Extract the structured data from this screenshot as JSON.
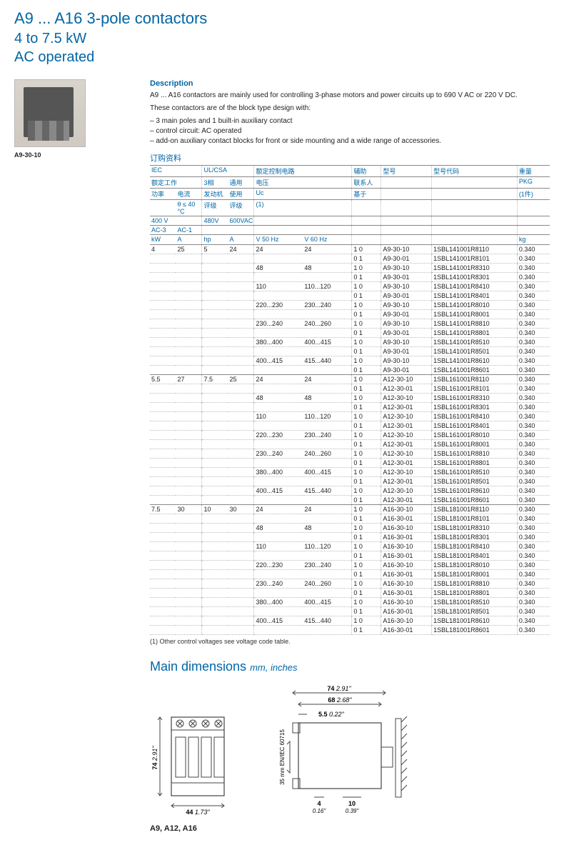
{
  "header": {
    "line1": "A9 ... A16  3-pole contactors",
    "line2": "4 to 7.5 kW",
    "line3": "AC operated"
  },
  "product": {
    "caption": "A9-30-10"
  },
  "description": {
    "heading": "Description",
    "p1": "A9 ... A16 contactors are mainly used for controlling 3-phase motors and power circuits up to 690 V AC or 220 V DC.",
    "p2": "These contactors are of the block type design with:",
    "bullets": [
      "3 main poles and 1 built-in auxiliary contact",
      "control circuit: AC operated",
      "add-on auxiliary contact blocks for front or side mounting and a wide range of accessories."
    ]
  },
  "section_label": "订购资料",
  "table": {
    "headers": {
      "iec": "IEC",
      "ulcsa": "UL/CSA",
      "ctrl": "额定控制电路",
      "aux": "辅助",
      "type": "型号",
      "typecode": "型号代码",
      "weight": "重量",
      "rated_work": "额定工作",
      "motor3": "3相",
      "general": "通用",
      "voltage": "电压",
      "contact": "联系人",
      "pkg": "PKG",
      "power": "功率",
      "current": "电流",
      "motor": "发动机",
      "use": "使用",
      "uc": "Uc",
      "based": "基于",
      "pkg1": "(1件)",
      "theta": "θ ≤ 40 °C",
      "rating1": "评级",
      "rating2": "评级",
      "note1": "(1)",
      "r400v": "400 V",
      "r480v": "480V",
      "r600v": "600VAC",
      "ac3": "AC-3",
      "ac1": "AC-1",
      "kw": "kW",
      "a1": "A",
      "hp": "hp",
      "a2": "A",
      "v50": "V 50 Hz",
      "v60": "V 60 Hz",
      "kg": "kg"
    },
    "groups": [
      {
        "kw": "4",
        "a_ac3": "25",
        "hp": "5",
        "a_ul": "24",
        "model_prefix": "A9-30",
        "code_prefix": "1SBL141001R8",
        "voltages": [
          {
            "v50": "24",
            "v60": "24",
            "suffix10": "110",
            "suffix01": "101"
          },
          {
            "v50": "48",
            "v60": "48",
            "suffix10": "310",
            "suffix01": "301"
          },
          {
            "v50": "110",
            "v60": "110...120",
            "suffix10": "410",
            "suffix01": "401"
          },
          {
            "v50": "220...230",
            "v60": "230...240",
            "suffix10": "010",
            "suffix01": "001"
          },
          {
            "v50": "230...240",
            "v60": "240...260",
            "suffix10": "810",
            "suffix01": "801"
          },
          {
            "v50": "380...400",
            "v60": "400...415",
            "suffix10": "510",
            "suffix01": "501"
          },
          {
            "v50": "400...415",
            "v60": "415...440",
            "suffix10": "610",
            "suffix01": "601"
          }
        ],
        "weight": "0.340"
      },
      {
        "kw": "5.5",
        "a_ac3": "27",
        "hp": "7.5",
        "a_ul": "25",
        "model_prefix": "A12-30",
        "code_prefix": "1SBL161001R8",
        "voltages": [
          {
            "v50": "24",
            "v60": "24",
            "suffix10": "110",
            "suffix01": "101"
          },
          {
            "v50": "48",
            "v60": "48",
            "suffix10": "310",
            "suffix01": "301"
          },
          {
            "v50": "110",
            "v60": "110...120",
            "suffix10": "410",
            "suffix01": "401"
          },
          {
            "v50": "220...230",
            "v60": "230...240",
            "suffix10": "010",
            "suffix01": "001"
          },
          {
            "v50": "230...240",
            "v60": "240...260",
            "suffix10": "810",
            "suffix01": "801"
          },
          {
            "v50": "380...400",
            "v60": "400...415",
            "suffix10": "510",
            "suffix01": "501"
          },
          {
            "v50": "400...415",
            "v60": "415...440",
            "suffix10": "610",
            "suffix01": "601"
          }
        ],
        "weight": "0.340"
      },
      {
        "kw": "7.5",
        "a_ac3": "30",
        "hp": "10",
        "a_ul": "30",
        "model_prefix": "A16-30",
        "code_prefix": "1SBL181001R8",
        "voltages": [
          {
            "v50": "24",
            "v60": "24",
            "suffix10": "110",
            "suffix01": "101"
          },
          {
            "v50": "48",
            "v60": "48",
            "suffix10": "310",
            "suffix01": "301"
          },
          {
            "v50": "110",
            "v60": "110...120",
            "suffix10": "410",
            "suffix01": "401"
          },
          {
            "v50": "220...230",
            "v60": "230...240",
            "suffix10": "010",
            "suffix01": "001"
          },
          {
            "v50": "230...240",
            "v60": "240...260",
            "suffix10": "810",
            "suffix01": "801"
          },
          {
            "v50": "380...400",
            "v60": "400...415",
            "suffix10": "510",
            "suffix01": "501"
          },
          {
            "v50": "400...415",
            "v60": "415...440",
            "suffix10": "610",
            "suffix01": "601"
          }
        ],
        "weight": "0.340"
      }
    ],
    "aux_10": "1   0",
    "aux_01": "0   1",
    "footnote": "(1) Other control voltages see voltage code table."
  },
  "dimensions": {
    "heading": "Main dimensions",
    "unit": "mm, inches",
    "caption": "A9, A12, A16",
    "front": {
      "height_mm": "74",
      "height_in": "2.91\"",
      "width_mm": "44",
      "width_in": "1.73\""
    },
    "side": {
      "total_w_mm": "74",
      "total_w_in": "2.91\"",
      "body_w_mm": "68",
      "body_w_in": "2.68\"",
      "tab_mm": "5.5",
      "tab_in": "0.22\"",
      "rail": "35 mm EN/IEC 60715",
      "d1_mm": "4",
      "d1_in": "0.16\"",
      "d2_mm": "10",
      "d2_in": "0.39\""
    }
  },
  "colors": {
    "brand": "#0066a6",
    "text": "#222222",
    "dotted": "#bbbbbb"
  }
}
